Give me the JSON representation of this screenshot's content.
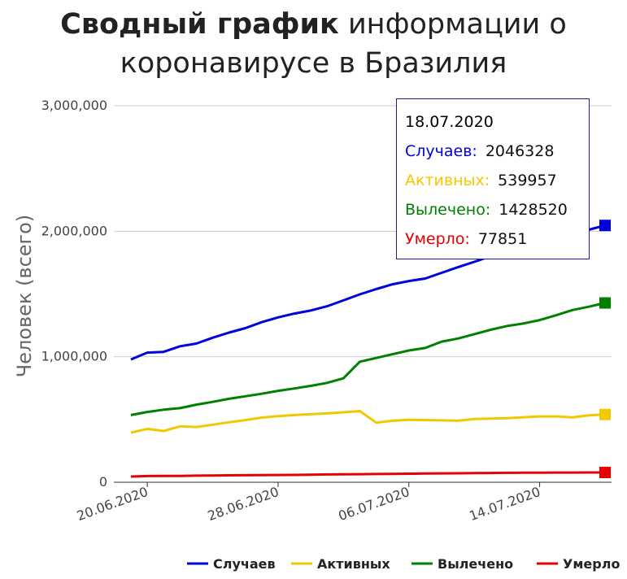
{
  "chart_data": {
    "type": "line",
    "title_bold": "Сводный график",
    "title_rest": " информации о коронавирусе в Бразилия",
    "ylabel": "Человек (всего)",
    "xlabel": "",
    "ylim": [
      0,
      3000000
    ],
    "y_ticks": [
      {
        "value": 0,
        "label": "0"
      },
      {
        "value": 1000000,
        "label": "1,000,000"
      },
      {
        "value": 2000000,
        "label": "2,000,000"
      },
      {
        "value": 3000000,
        "label": "3,000,000"
      }
    ],
    "x_ticks": [
      "20.06.2020",
      "28.06.2020",
      "06.07.2020",
      "14.07.2020"
    ],
    "x": [
      "19.06.2020",
      "20.06.2020",
      "21.06.2020",
      "22.06.2020",
      "23.06.2020",
      "24.06.2020",
      "25.06.2020",
      "26.06.2020",
      "27.06.2020",
      "28.06.2020",
      "29.06.2020",
      "30.06.2020",
      "01.07.2020",
      "02.07.2020",
      "03.07.2020",
      "04.07.2020",
      "05.07.2020",
      "06.07.2020",
      "07.07.2020",
      "08.07.2020",
      "09.07.2020",
      "10.07.2020",
      "11.07.2020",
      "12.07.2020",
      "13.07.2020",
      "14.07.2020",
      "15.07.2020",
      "16.07.2020",
      "17.07.2020",
      "18.07.2020"
    ],
    "grid": true,
    "legend_position": "bottom",
    "series": [
      {
        "name": "Случаев",
        "color": "#0000dd",
        "values": [
          978142,
          1032913,
          1038568,
          1083341,
          1104561,
          1151479,
          1192474,
          1228114,
          1274974,
          1313667,
          1344143,
          1368195,
          1402041,
          1448753,
          1496858,
          1539081,
          1577004,
          1603055,
          1623284,
          1668589,
          1713160,
          1755779,
          1800827,
          1839850,
          1864681,
          1884967,
          1926824,
          1966748,
          2012151,
          2046328
        ]
      },
      {
        "name": "Активных",
        "color": "#f2c800",
        "values": [
          395000,
          425000,
          408000,
          445000,
          440000,
          458000,
          478000,
          495000,
          515000,
          526000,
          535000,
          543000,
          548000,
          557000,
          567000,
          475000,
          490000,
          497000,
          495000,
          493000,
          490000,
          504000,
          507000,
          510000,
          518000,
          524000,
          524000,
          517000,
          533000,
          539957
        ]
      },
      {
        "name": "Вылечено",
        "color": "#008000",
        "values": [
          535000,
          560000,
          578000,
          590000,
          618000,
          640000,
          665000,
          685000,
          705000,
          728000,
          747000,
          768000,
          792000,
          828000,
          960000,
          990000,
          1020000,
          1050000,
          1070000,
          1120000,
          1145000,
          1180000,
          1215000,
          1245000,
          1265000,
          1292000,
          1330000,
          1372000,
          1398000,
          1428520
        ]
      },
      {
        "name": "Умерло",
        "color": "#e60000",
        "values": [
          45241,
          48954,
          49976,
          50617,
          52645,
          53830,
          55054,
          55961,
          57070,
          57622,
          58314,
          59594,
          61884,
          63174,
          64265,
          65487,
          66741,
          67964,
          69184,
          70398,
          71469,
          72833,
          74133,
          75366,
          75523,
          76688,
          76822,
          77032,
          77447,
          77851
        ]
      }
    ]
  },
  "tooltip": {
    "date": "18.07.2020",
    "rows": [
      {
        "label": "Случаев:",
        "value": "2046328",
        "color": "#0000dd"
      },
      {
        "label": "Активных:",
        "value": "539957",
        "color": "#f2c800"
      },
      {
        "label": "Вылечено:",
        "value": "1428520",
        "color": "#008000"
      },
      {
        "label": "Умерло:",
        "value": "77851",
        "color": "#e60000"
      }
    ]
  }
}
